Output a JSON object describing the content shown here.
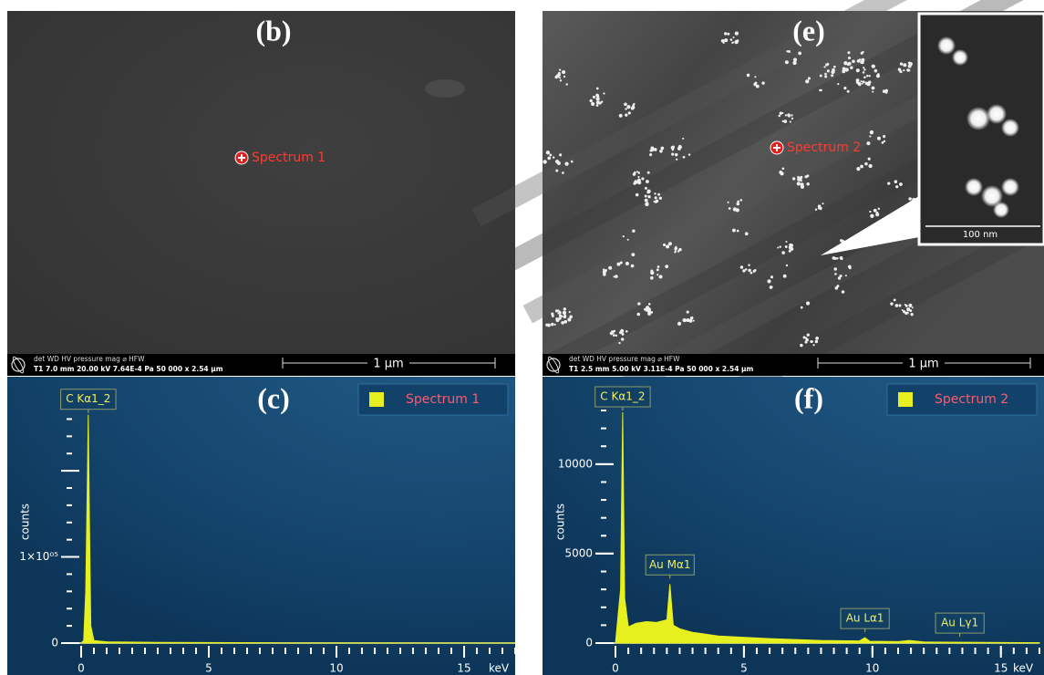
{
  "panels": [
    {
      "label": "(b)",
      "marker": "Spectrum 1",
      "info_header": "det  WD       HV       pressure     mag    ⌀ HFW",
      "info_values": "T1  7.0 mm  20.00 kV  7.64E-4 Pa  50 000 x  2.54 µm",
      "scale_bar": "1 µm"
    },
    {
      "label": "(e)",
      "marker": "Spectrum 2",
      "info_header": "det  WD       HV       pressure     mag    ⌀ HFW",
      "info_values": "T1  2.5 mm  5.00 kV  3.11E-4 Pa  50 000 x  2.54 µm",
      "scale_bar": "1 µm",
      "inset_scale_bar": "100 nm"
    }
  ],
  "chart_data": [
    {
      "type": "area",
      "title": "(c)",
      "ylabel": "counts",
      "xlabel": "keV",
      "legend": "top-right",
      "x": [
        0,
        0.1,
        0.18,
        0.24,
        0.28,
        0.32,
        0.38,
        0.5,
        1,
        3,
        8,
        17
      ],
      "series": [
        {
          "name": "Spectrum 1",
          "color": "#e6f01e",
          "values": [
            0,
            3000,
            60000,
            180000,
            265000,
            150000,
            20000,
            3000,
            1500,
            800,
            300,
            100
          ]
        }
      ],
      "annotations": [
        {
          "text": "C Kα1_2",
          "x": 0.28
        }
      ],
      "xlim": [
        0,
        17
      ],
      "ylim": [
        0,
        270000
      ],
      "xticks": [
        0,
        5,
        10,
        15
      ],
      "yticks": [
        0,
        {
          "value": 100000,
          "label": "1×10⁰⁵"
        }
      ]
    },
    {
      "type": "area",
      "title": "(f)",
      "ylabel": "counts",
      "xlabel": "keV",
      "legend": "top-right",
      "x": [
        0,
        0.1,
        0.2,
        0.28,
        0.36,
        0.5,
        0.8,
        1.2,
        1.6,
        2.0,
        2.12,
        2.25,
        2.5,
        3,
        4,
        6,
        8,
        9.5,
        9.71,
        9.9,
        11,
        11.44,
        12,
        15,
        16.5
      ],
      "series": [
        {
          "name": "Spectrum 2",
          "color": "#e6f01e",
          "values": [
            0,
            1500,
            3000,
            12900,
            2500,
            900,
            1100,
            1200,
            1150,
            1300,
            3300,
            1000,
            800,
            600,
            400,
            250,
            150,
            120,
            300,
            100,
            80,
            150,
            60,
            30,
            20
          ]
        }
      ],
      "annotations": [
        {
          "text": "C Kα1_2",
          "x": 0.28
        },
        {
          "text": "Au Mα1",
          "x": 2.12
        },
        {
          "text": "Au Lα1",
          "x": 9.71
        },
        {
          "text": "Au Lγ1",
          "x": 13.4
        }
      ],
      "xlim": [
        0,
        16.5
      ],
      "ylim": [
        0,
        13000
      ],
      "xticks": [
        0,
        5,
        10,
        15
      ],
      "yticks": [
        0,
        5000,
        10000
      ]
    }
  ]
}
